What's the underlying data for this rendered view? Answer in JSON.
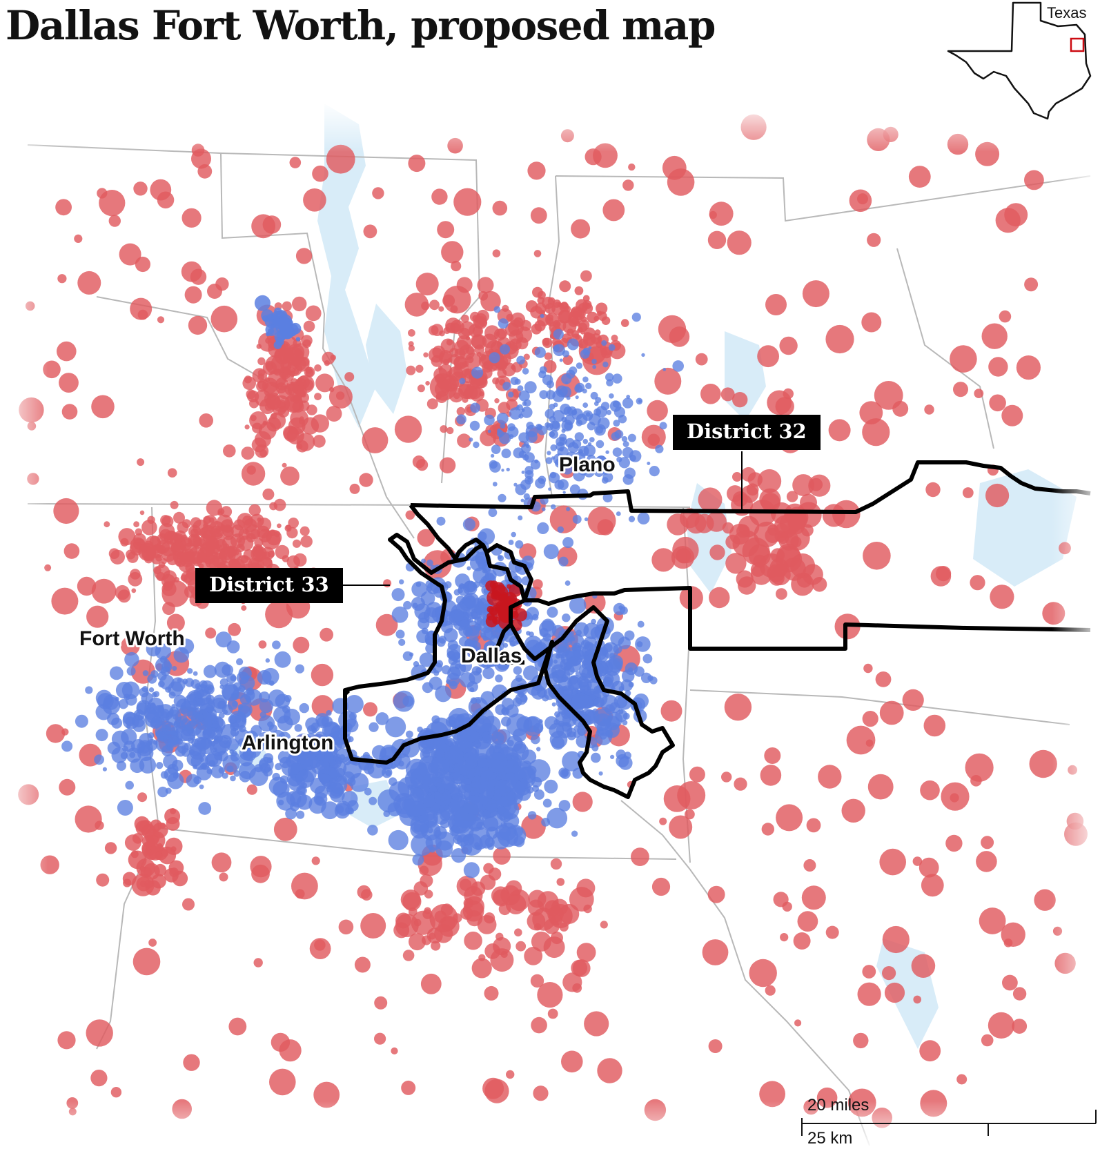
{
  "title": "Dallas Fort Worth, proposed map",
  "inset": {
    "label": "Texas",
    "highlight_color": "#cc0a11"
  },
  "cities": [
    {
      "id": "plano",
      "label": "Plano"
    },
    {
      "id": "fort-worth",
      "label": "Fort Worth"
    },
    {
      "id": "dallas",
      "label": "Dallas"
    },
    {
      "id": "arlington",
      "label": "Arlington"
    }
  ],
  "districts": [
    {
      "id": "district-32",
      "label": "District 32"
    },
    {
      "id": "district-33",
      "label": "District 33"
    }
  ],
  "scale": {
    "miles_label": "20 miles",
    "km_label": "25 km"
  },
  "colors": {
    "republican": "#e05a5f",
    "republican_dark": "#c8161e",
    "democrat": "#5b7fe0",
    "democrat_dark": "#1f4fc9",
    "district_outline": "#000000",
    "water": "#d8ecf8",
    "county_lines": "#b8b8b8"
  }
}
